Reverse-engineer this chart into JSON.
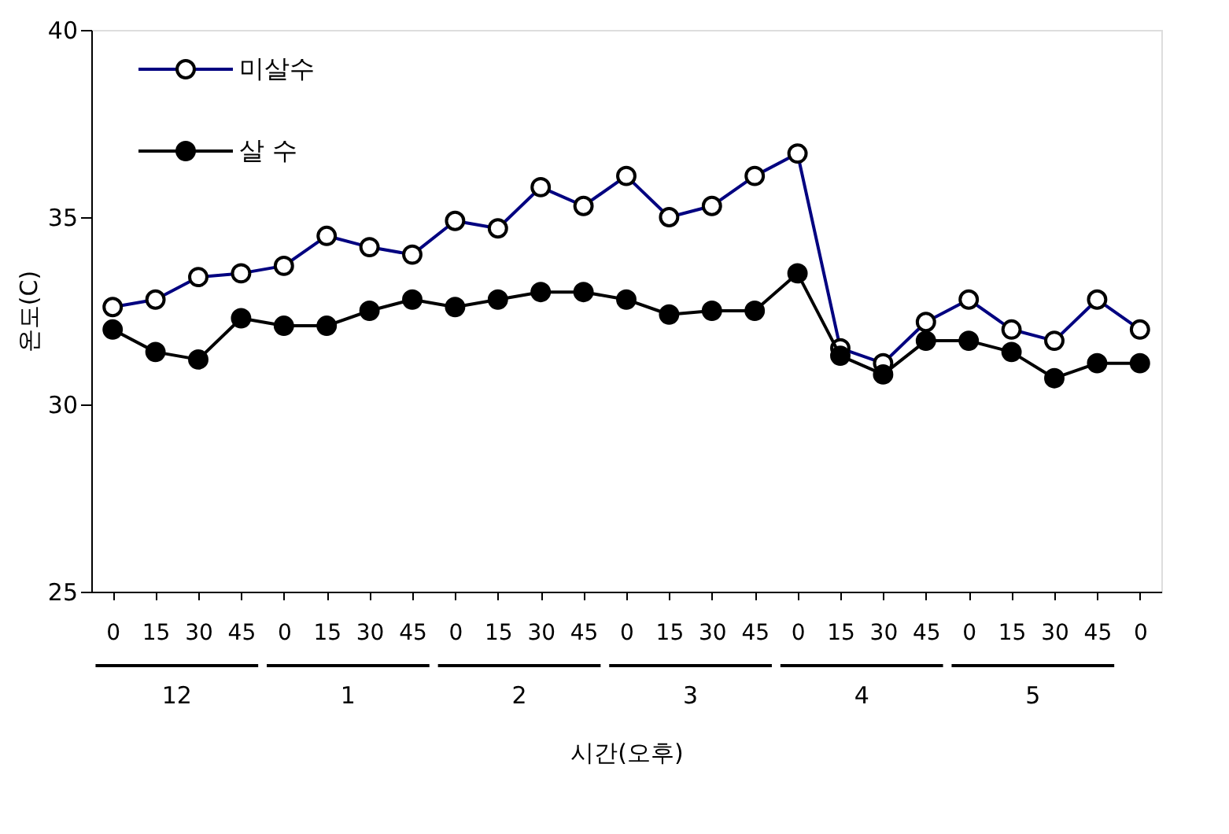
{
  "chart_data": {
    "type": "line",
    "xlabel": "시간(오후)",
    "ylabel": "온도(C)",
    "categories": [
      "0",
      "15",
      "30",
      "45",
      "0",
      "15",
      "30",
      "45",
      "0",
      "15",
      "30",
      "45",
      "0",
      "15",
      "30",
      "45",
      "0",
      "15",
      "30",
      "45",
      "0",
      "15",
      "30",
      "45",
      "0"
    ],
    "series": [
      {
        "name": "미살수",
        "color": "#000080",
        "values": [
          32.6,
          32.8,
          33.4,
          33.5,
          33.7,
          34.5,
          34.2,
          34.0,
          34.9,
          34.7,
          35.8,
          35.3,
          36.1,
          35.0,
          35.3,
          36.1,
          36.7,
          31.5,
          31.1,
          32.2,
          32.8,
          32.0,
          31.7,
          32.8,
          32.0
        ]
      },
      {
        "name": "살 수",
        "color": "#000000",
        "values": [
          32.0,
          31.4,
          31.2,
          32.3,
          32.1,
          32.1,
          32.5,
          32.8,
          32.6,
          32.8,
          33.0,
          33.0,
          32.8,
          32.4,
          32.5,
          32.5,
          33.5,
          31.3,
          30.8,
          31.7,
          31.7,
          31.4,
          30.7,
          31.1,
          31.1
        ]
      }
    ],
    "annotations": [
      "12",
      "1",
      "2",
      "3",
      "4",
      "5"
    ],
    "ylim": [
      25,
      40
    ],
    "yticks": [
      25,
      30,
      35,
      40
    ],
    "grid": false,
    "legend": "top left",
    "marker": "circle",
    "line_style": "solid"
  }
}
